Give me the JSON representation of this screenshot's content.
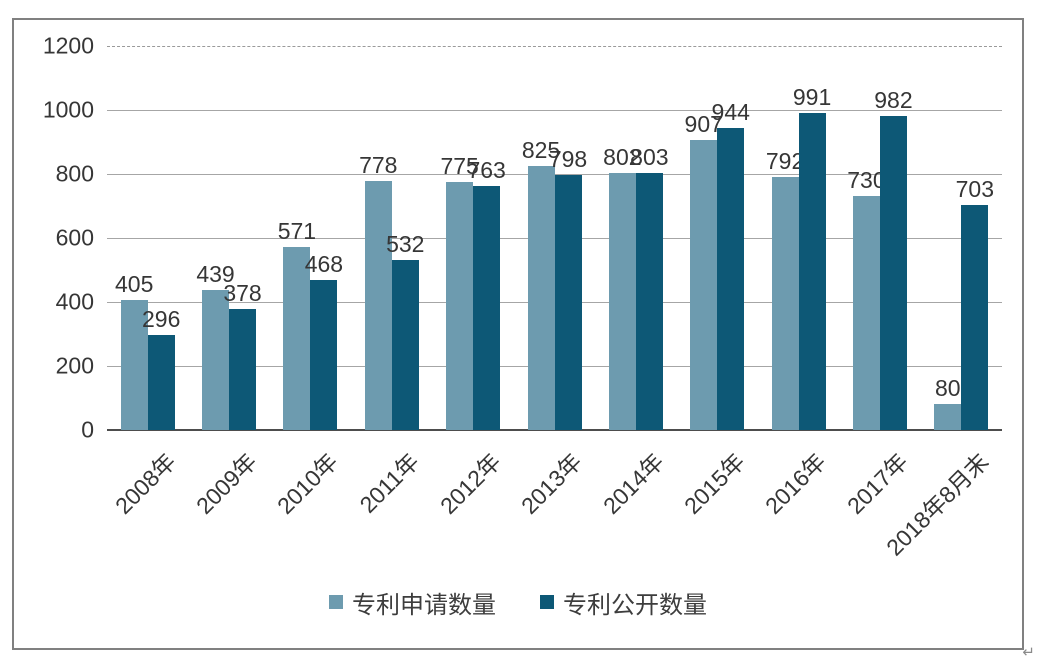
{
  "chart_data": {
    "type": "bar",
    "title": "",
    "categories": [
      "2008年",
      "2009年",
      "2010年",
      "2011年",
      "2012年",
      "2013年",
      "2014年",
      "2015年",
      "2016年",
      "2017年",
      "2018年8月末"
    ],
    "series": [
      {
        "name": "专利申请数量",
        "color": "#6D9BAF",
        "values": [
          405,
          439,
          571,
          778,
          775,
          825,
          802,
          907,
          792,
          730,
          80
        ]
      },
      {
        "name": "专利公开数量",
        "color": "#0D5876",
        "values": [
          296,
          378,
          468,
          532,
          763,
          798,
          803,
          944,
          991,
          982,
          703
        ]
      }
    ],
    "ylim": [
      0,
      1200
    ],
    "yticks": [
      0,
      200,
      400,
      600,
      800,
      1000,
      1200
    ],
    "grid": "horizontal",
    "gridline_color": "#a6a6a6",
    "legend_position": "bottom"
  },
  "decorations": {
    "return_mark": "↵"
  }
}
